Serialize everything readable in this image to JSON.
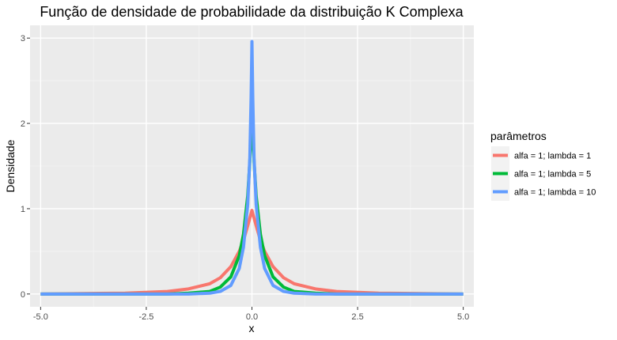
{
  "chart_data": {
    "type": "line",
    "title": "Função de densidade de probabilidade da distribuição K Complexa",
    "xlabel": "x",
    "ylabel": "Densidade",
    "xlim": [
      -5.25,
      5.25
    ],
    "ylim": [
      -0.15,
      3.15
    ],
    "x_ticks": [
      -5.0,
      -2.5,
      0.0,
      2.5,
      5.0
    ],
    "x_tick_labels": [
      "-5.0",
      "-2.5",
      "0.0",
      "2.5",
      "5.0"
    ],
    "y_ticks": [
      0,
      1,
      2,
      3
    ],
    "y_tick_labels": [
      "0",
      "1",
      "2",
      "3"
    ],
    "grid": true,
    "legend": {
      "title": "parâmetros",
      "position": "right"
    },
    "series": [
      {
        "name": "alfa = 1; lambda = 1",
        "color": "#f8766d",
        "x": [
          -5,
          -3,
          -2,
          -1.5,
          -1,
          -0.75,
          -0.5,
          -0.3,
          -0.2,
          -0.1,
          -0.05,
          0,
          0.05,
          0.1,
          0.2,
          0.3,
          0.5,
          0.75,
          1,
          1.5,
          2,
          3,
          5
        ],
        "y": [
          0.0,
          0.01,
          0.03,
          0.06,
          0.12,
          0.19,
          0.32,
          0.5,
          0.63,
          0.8,
          0.89,
          0.98,
          0.89,
          0.8,
          0.63,
          0.5,
          0.32,
          0.19,
          0.12,
          0.06,
          0.03,
          0.01,
          0.0
        ]
      },
      {
        "name": "alfa = 1; lambda = 5",
        "color": "#00ba38",
        "x": [
          -5,
          -2,
          -1.5,
          -1,
          -0.75,
          -0.5,
          -0.3,
          -0.2,
          -0.1,
          -0.05,
          0,
          0.05,
          0.1,
          0.2,
          0.3,
          0.5,
          0.75,
          1,
          1.5,
          2,
          5
        ],
        "y": [
          0.0,
          0.0,
          0.01,
          0.03,
          0.08,
          0.2,
          0.45,
          0.7,
          1.15,
          1.55,
          2.12,
          1.55,
          1.15,
          0.7,
          0.45,
          0.2,
          0.08,
          0.03,
          0.01,
          0.0,
          0.0
        ]
      },
      {
        "name": "alfa = 1; lambda = 10",
        "color": "#619cff",
        "x": [
          -5,
          -1.5,
          -1,
          -0.75,
          -0.5,
          -0.3,
          -0.2,
          -0.1,
          -0.05,
          -0.02,
          0,
          0.02,
          0.05,
          0.1,
          0.2,
          0.3,
          0.5,
          0.75,
          1,
          1.5,
          5
        ],
        "y": [
          0.0,
          0.0,
          0.01,
          0.03,
          0.1,
          0.3,
          0.55,
          1.05,
          1.6,
          2.3,
          2.96,
          2.3,
          1.6,
          1.05,
          0.55,
          0.3,
          0.1,
          0.03,
          0.01,
          0.0,
          0.0
        ]
      }
    ]
  }
}
